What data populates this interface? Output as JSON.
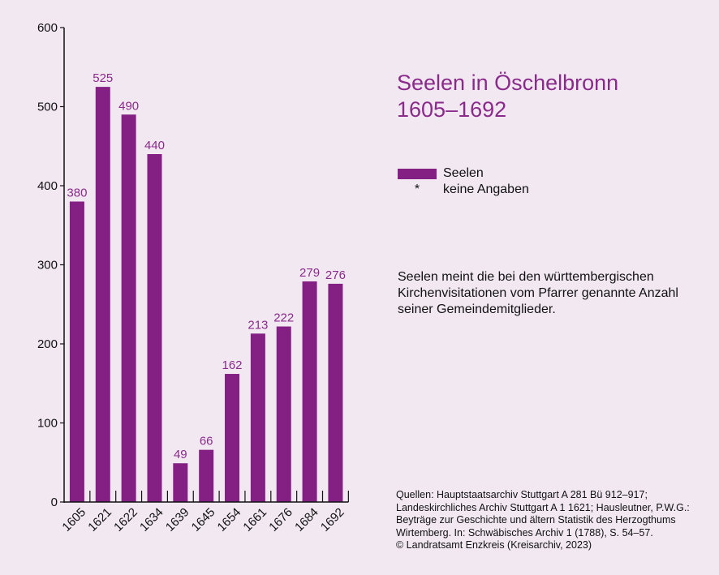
{
  "title_line1": "Seelen in Öschelbronn",
  "title_line2": "1605–1692",
  "legend": {
    "series_label": "Seelen",
    "marker_symbol": "*",
    "missing_label": "keine Angaben"
  },
  "note": "Seelen meint die bei den württembergischen Kirchenvisitationen vom Pfarrer genannte Anzahl seiner Gemeindemitglieder.",
  "sources": [
    "Quellen: Hauptstaatsarchiv Stuttgart A 281 Bü 912–917;",
    "Landeskirchliches Archiv Stuttgart A 1 1621; Hausleutner, P.W.G.:",
    "Beyträge zur Geschichte und ältern Statistik des Herzogthums",
    "Wirtemberg. In: Schwäbisches Archiv 1 (1788), S. 54–57.",
    "© Landratsamt Enzkreis (Kreisarchiv, 2023)"
  ],
  "colors": {
    "bar": "#841f84",
    "label": "#8a2a8a",
    "background": "#f2e8f2",
    "axis": "#111111"
  },
  "chart_data": {
    "type": "bar",
    "categories": [
      "1605",
      "1621",
      "1622",
      "1634",
      "1639",
      "1645",
      "1654",
      "1661",
      "1676",
      "1684",
      "1692"
    ],
    "values": [
      380,
      525,
      490,
      440,
      49,
      66,
      162,
      213,
      222,
      279,
      276
    ],
    "data_labels": [
      "380",
      "525",
      "490",
      "440",
      "49",
      "66",
      "162",
      "213",
      "222",
      "279",
      "276"
    ],
    "ylim": [
      0,
      600
    ],
    "yticks": [
      0,
      100,
      200,
      300,
      400,
      500,
      600
    ],
    "xlabel": "",
    "ylabel": "",
    "grid": false
  }
}
